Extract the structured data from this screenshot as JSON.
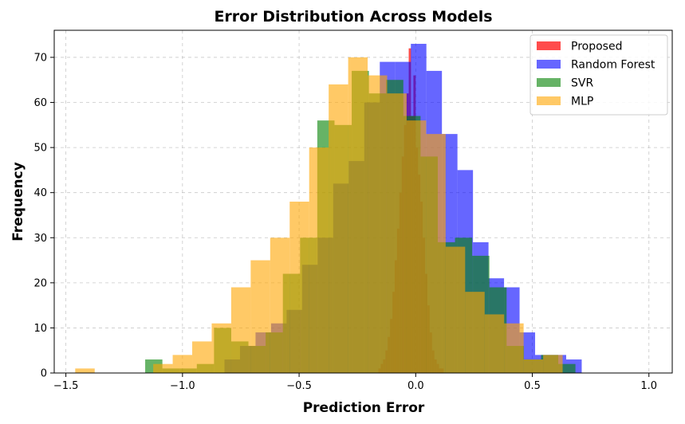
{
  "chart_data": {
    "type": "histogram",
    "title": "Error Distribution Across Models",
    "xlabel": "Prediction Error",
    "ylabel": "Frequency",
    "xlim": [
      -1.55,
      1.1
    ],
    "ylim": [
      0,
      76
    ],
    "xticks": [
      -1.5,
      -1.0,
      -0.5,
      0.0,
      0.5,
      1.0
    ],
    "xtick_labels": [
      "−1.5",
      "−1.0",
      "−0.5",
      "0.0",
      "0.5",
      "1.0"
    ],
    "yticks": [
      0,
      10,
      20,
      30,
      40,
      50,
      60,
      70
    ],
    "ytick_labels": [
      "0",
      "10",
      "20",
      "30",
      "40",
      "50",
      "60",
      "70"
    ],
    "grid": true,
    "legend_position": "top-right",
    "series": [
      {
        "name": "Proposed",
        "color": "#ff0000",
        "alpha": 0.7,
        "bin_start": -0.16,
        "bin_width": 0.01,
        "counts": [
          1,
          2,
          3,
          5,
          8,
          12,
          18,
          25,
          32,
          40,
          48,
          55,
          62,
          72,
          57,
          66,
          50,
          44,
          38,
          30,
          22,
          15,
          9,
          5,
          3,
          2,
          1,
          1
        ]
      },
      {
        "name": "Random Forest",
        "color": "#0000ff",
        "alpha": 0.6,
        "bin_start": -0.82,
        "bin_width": 0.0666,
        "counts": [
          3,
          6,
          9,
          11,
          14,
          24,
          30,
          42,
          47,
          60,
          69,
          69,
          73,
          67,
          53,
          45,
          29,
          21,
          19,
          9,
          4,
          4,
          3
        ]
      },
      {
        "name": "SVR",
        "color": "#008000",
        "alpha": 0.6,
        "bin_start": -1.16,
        "bin_width": 0.0738,
        "counts": [
          3,
          1,
          1,
          2,
          10,
          7,
          6,
          9,
          22,
          30,
          56,
          55,
          67,
          62,
          65,
          57,
          48,
          29,
          30,
          26,
          19,
          6,
          3,
          4,
          2
        ]
      },
      {
        "name": "MLP",
        "color": "#ffa500",
        "alpha": 0.6,
        "bin_start": -1.46,
        "bin_width": 0.0836,
        "counts": [
          1,
          0,
          0,
          0,
          2,
          4,
          7,
          11,
          19,
          25,
          30,
          38,
          50,
          64,
          70,
          66,
          62,
          56,
          53,
          28,
          18,
          13,
          11,
          3,
          4
        ]
      }
    ]
  }
}
